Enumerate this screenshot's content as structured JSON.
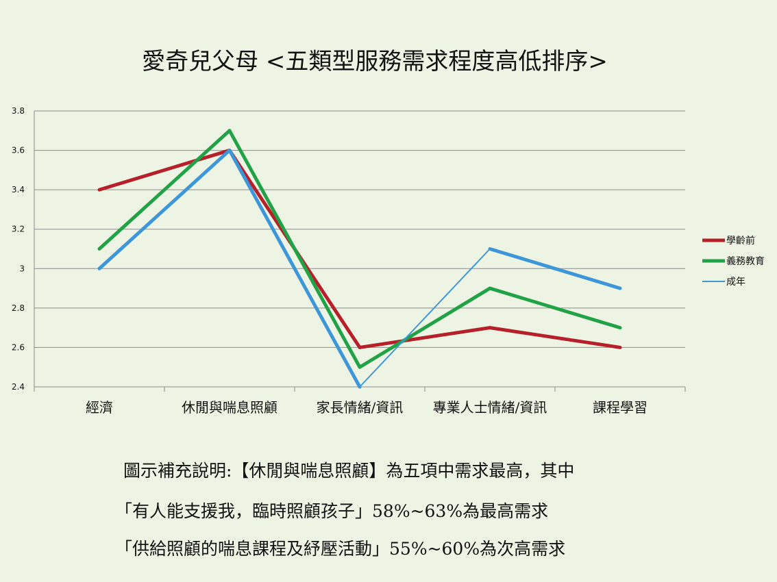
{
  "chart_data": {
    "type": "line",
    "title": "愛奇兒父母 <五類型服務需求程度高低排序>",
    "categories": [
      "經濟",
      "休閒與喘息照顧",
      "家長情緒/資訊",
      "專業人士情緒/資訊",
      "課程學習"
    ],
    "ylim": [
      2.4,
      3.8
    ],
    "yticks": [
      "2.4",
      "2.6",
      "2.8",
      "3",
      "3.2",
      "3.4",
      "3.6",
      "3.8"
    ],
    "ytick_values": [
      2.4,
      2.6,
      2.8,
      3.0,
      3.2,
      3.4,
      3.6,
      3.8
    ],
    "grid": true,
    "legend_position": "right",
    "series": [
      {
        "name": "學齡前",
        "color": "#b5202a",
        "values": [
          3.4,
          3.6,
          2.6,
          2.7,
          2.6
        ]
      },
      {
        "name": "義務教育",
        "color": "#22a247",
        "values": [
          3.1,
          3.7,
          2.5,
          2.9,
          2.7
        ]
      },
      {
        "name": "成年",
        "color": "#3d96d8",
        "values": [
          3.0,
          3.6,
          2.4,
          3.1,
          2.9
        ]
      }
    ]
  },
  "notes": [
    "圖示補充說明:【休閒與喘息照顧】為五項中需求最高，其中",
    "「有人能支援我，臨時照顧孩子」58%~63%為最高需求",
    "「供給照顧的喘息課程及紓壓活動」55%~60%為次高需求"
  ]
}
